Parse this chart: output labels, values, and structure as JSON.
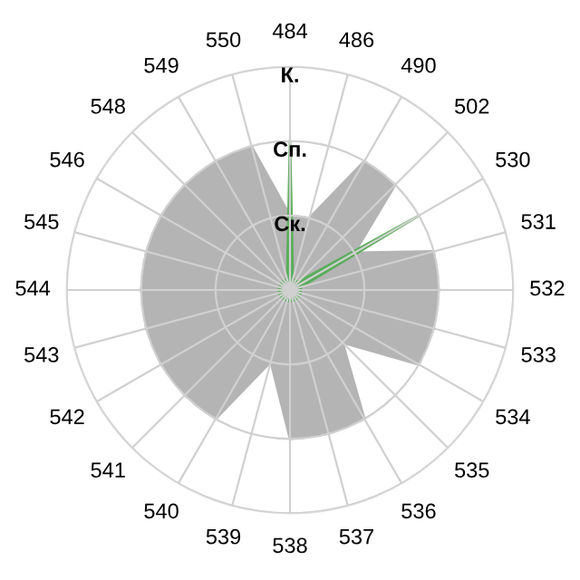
{
  "chart_data": {
    "type": "radar",
    "categories": [
      "484",
      "486",
      "490",
      "502",
      "530",
      "531",
      "532",
      "533",
      "534",
      "535",
      "536",
      "537",
      "538",
      "539",
      "540",
      "541",
      "542",
      "543",
      "544",
      "545",
      "546",
      "548",
      "549",
      "550"
    ],
    "series": [
      {
        "color": "#b4b4b4",
        "values": [
          1,
          1,
          2,
          2,
          1,
          2,
          2,
          2,
          2,
          1,
          2,
          2,
          2,
          1,
          2,
          2,
          2,
          2,
          2,
          2,
          2,
          2,
          2,
          2
        ]
      },
      {
        "color": "#5aad5a",
        "values": [
          2,
          0.15,
          0.15,
          0.15,
          2,
          0.15,
          0.15,
          0.15,
          0.15,
          0.15,
          0.15,
          0.15,
          0.15,
          0.15,
          0.15,
          0.15,
          0.15,
          0.15,
          0.15,
          0.15,
          0.15,
          0.15,
          0.15,
          0.15
        ]
      }
    ],
    "ylim": [
      0,
      3
    ],
    "yticks": [
      {
        "value": 1,
        "label": "Ск."
      },
      {
        "value": 2,
        "label": "Сп."
      },
      {
        "value": 3,
        "label": "К."
      }
    ],
    "grid": true
  }
}
